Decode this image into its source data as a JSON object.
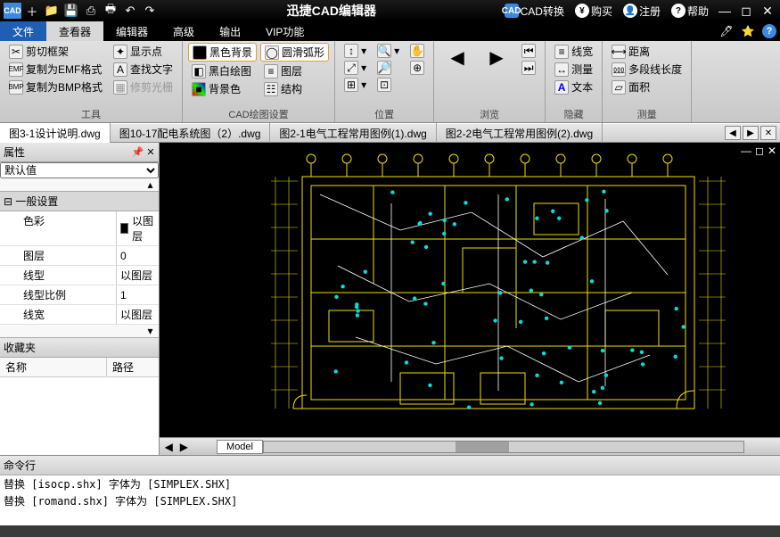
{
  "titlebar": {
    "title": "迅捷CAD编辑器",
    "qat": [
      "CAD",
      "＋",
      "📁",
      "💾",
      "⎙",
      "🖶",
      "↶",
      "↷"
    ],
    "right": [
      {
        "icon": "CAD",
        "label": "CAD转换"
      },
      {
        "icon": "¥",
        "label": "购买"
      },
      {
        "icon": "👤",
        "label": "注册"
      },
      {
        "icon": "?",
        "label": "帮助"
      }
    ]
  },
  "menu": {
    "tabs": [
      "文件",
      "查看器",
      "编辑器",
      "高级",
      "输出",
      "VIP功能"
    ],
    "active": 1
  },
  "ribbon": {
    "groups": [
      {
        "label": "工具",
        "cols": [
          [
            {
              "t": "剪切框架"
            },
            {
              "t": "复制为EMF格式"
            },
            {
              "t": "复制为BMP格式"
            }
          ],
          [
            {
              "t": "显示点"
            },
            {
              "t": "查找文字"
            },
            {
              "t": "修剪光栅",
              "dim": true
            }
          ]
        ]
      },
      {
        "label": "CAD绘图设置",
        "cols": [
          [
            {
              "t": "黑色背景",
              "hl": true
            },
            {
              "t": "黑白绘图"
            },
            {
              "t": "背景色"
            }
          ],
          [
            {
              "t": "圆滑弧形",
              "hl": true
            },
            {
              "t": "图层"
            },
            {
              "t": "结构"
            }
          ]
        ]
      },
      {
        "label": "位置",
        "big": [
          {
            "t": ""
          },
          {
            "t": ""
          }
        ],
        "cols": [
          [
            {
              "t": ""
            },
            {
              "t": ""
            },
            {
              "t": ""
            }
          ],
          [
            {
              "t": ""
            },
            {
              "t": ""
            },
            {
              "t": ""
            }
          ]
        ]
      },
      {
        "label": "浏览",
        "big": [
          {
            "t": ""
          },
          {
            "t": ""
          }
        ],
        "cols": [
          [
            {
              "t": ""
            },
            {
              "t": ""
            }
          ],
          [
            {
              "t": ""
            },
            {
              "t": ""
            }
          ]
        ]
      },
      {
        "label": "隐藏",
        "cols": [
          [
            {
              "t": "线宽"
            },
            {
              "t": "测量"
            },
            {
              "t": "文本"
            }
          ]
        ]
      },
      {
        "label": "测量",
        "cols": [
          [
            {
              "t": "距离"
            },
            {
              "t": "多段线长度"
            },
            {
              "t": "面积"
            }
          ]
        ]
      }
    ]
  },
  "doctabs": {
    "tabs": [
      "图3-1设计说明.dwg",
      "图10-17配电系统图（2）.dwg",
      "图2-1电气工程常用图例(1).dwg",
      "图2-2电气工程常用图例(2).dwg"
    ],
    "active": 0
  },
  "props": {
    "title": "属性",
    "default": "默认值",
    "cat": "一般设置",
    "rows": [
      {
        "k": "色彩",
        "v": "以图层",
        "sw": true
      },
      {
        "k": "图层",
        "v": "0"
      },
      {
        "k": "线型",
        "v": "以图层"
      },
      {
        "k": "线型比例",
        "v": "1"
      },
      {
        "k": "线宽",
        "v": "以图层"
      }
    ],
    "fav": "收藏夹",
    "favcols": [
      "名称",
      "路径"
    ]
  },
  "model": "Model",
  "cmd": {
    "title": "命令行",
    "lines": [
      "替换 [isocp.shx] 字体为 [SIMPLEX.SHX]",
      "替换 [romand.shx] 字体为 [SIMPLEX.SHX]"
    ]
  },
  "colors": {
    "plan": "#f0e000",
    "node": "#00e0e0"
  }
}
